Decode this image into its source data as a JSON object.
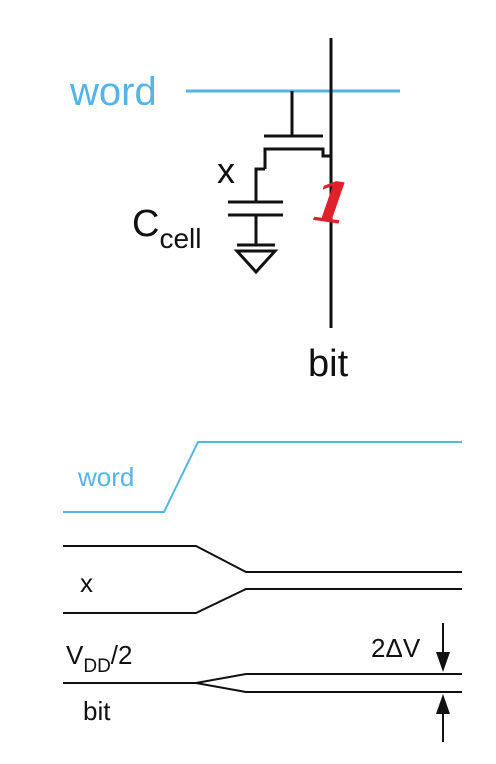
{
  "colors": {
    "word_line": "#55b4e6",
    "ink": "#111111",
    "annotation": "#e0202a"
  },
  "schematic": {
    "word_label": "word",
    "node_label": "x",
    "cap_label_main": "C",
    "cap_label_sub": "cell",
    "bit_label": "bit",
    "handwritten_mark": "1"
  },
  "timing": {
    "word_label": "word",
    "x_label": "x",
    "vdd_main": "V",
    "vdd_sub": "DD",
    "vdd_suffix": "/2",
    "bit_label": "bit",
    "delta_label": "2ΔV"
  }
}
